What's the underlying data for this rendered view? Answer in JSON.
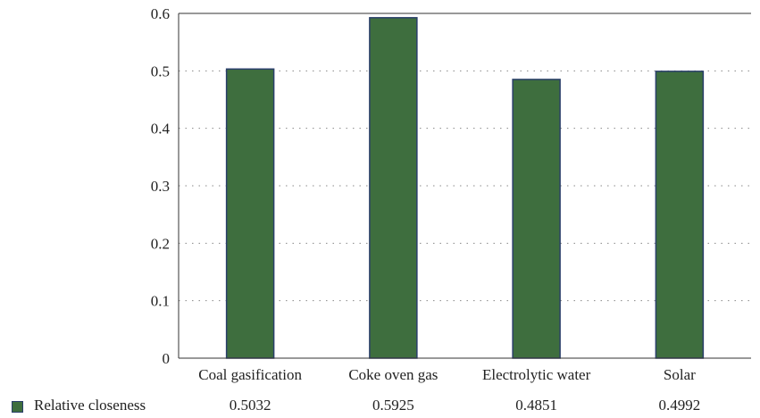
{
  "chart_data": {
    "type": "bar",
    "categories": [
      "Coal gasification",
      "Coke oven gas",
      "Electrolytic water",
      "Solar"
    ],
    "series": [
      {
        "name": "Relative closeness",
        "values": [
          0.5032,
          0.5925,
          0.4851,
          0.4992
        ]
      }
    ],
    "value_labels": [
      "0.5032",
      "0.5925",
      "0.4851",
      "0.4992"
    ],
    "yticks": [
      "0",
      "0.1",
      "0.2",
      "0.3",
      "0.4",
      "0.5",
      "0.6"
    ],
    "ylim": [
      0,
      0.6
    ],
    "title": "",
    "xlabel": "",
    "ylabel": "",
    "grid": "dotted horizontal",
    "legend": "data table below axis",
    "colors": {
      "bar": "#3e6e3e",
      "bar_edge": "#2a3f6a",
      "axis": "#333333",
      "grid": "#888888"
    }
  }
}
